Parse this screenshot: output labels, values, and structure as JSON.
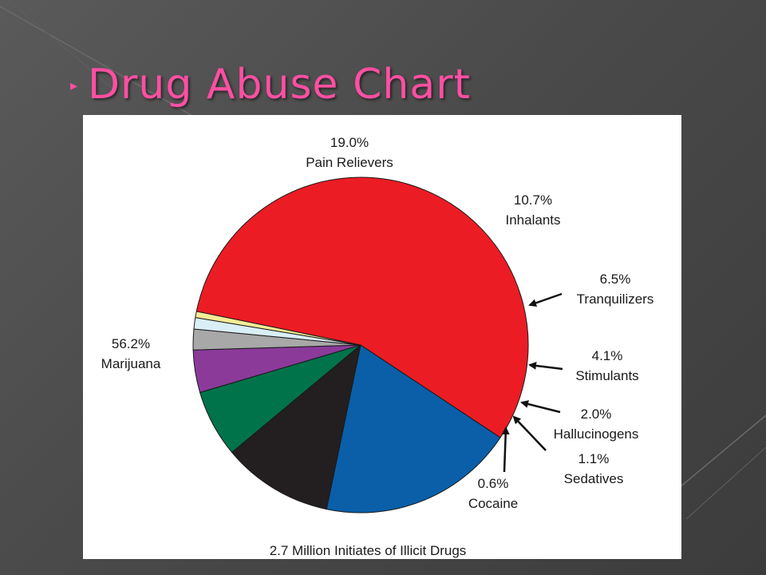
{
  "slide": {
    "title": "Drug Abuse Chart",
    "title_color": "#ff4fa3"
  },
  "chart_data": {
    "type": "pie",
    "title": "",
    "caption": "2.7 Million Initiates of Illicit Drugs",
    "slices": [
      {
        "name": "Pain Relievers",
        "value": 19.0,
        "pct_label": "19.0%",
        "color": "#0a5fa8"
      },
      {
        "name": "Inhalants",
        "value": 10.7,
        "pct_label": "10.7%",
        "color": "#231f20"
      },
      {
        "name": "Tranquilizers",
        "value": 6.5,
        "pct_label": "6.5%",
        "color": "#00734a"
      },
      {
        "name": "Stimulants",
        "value": 4.1,
        "pct_label": "4.1%",
        "color": "#8b3a9a"
      },
      {
        "name": "Hallucinogens",
        "value": 2.0,
        "pct_label": "2.0%",
        "color": "#a8a8a8"
      },
      {
        "name": "Sedatives",
        "value": 1.1,
        "pct_label": "1.1%",
        "color": "#d9eef6"
      },
      {
        "name": "Cocaine",
        "value": 0.6,
        "pct_label": "0.6%",
        "color": "#f6ec96"
      },
      {
        "name": "Marijuana",
        "value": 56.2,
        "pct_label": "56.2%",
        "color": "#ec1c24"
      }
    ],
    "start_angle_deg": 123.5,
    "direction": "clockwise",
    "legend": "none (labels beside slices)"
  }
}
